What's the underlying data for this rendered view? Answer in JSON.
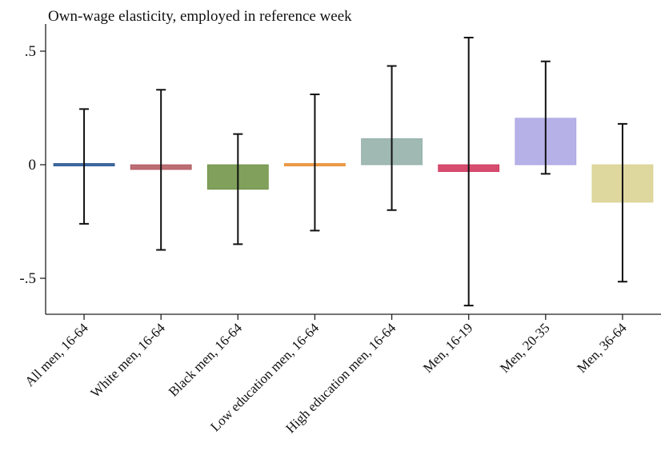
{
  "chart_data": {
    "type": "bar",
    "title": "Own-wage elasticity, employed in reference week",
    "xlabel": "",
    "ylabel": "",
    "ylim": [
      -0.66,
      0.6
    ],
    "yticks": [
      {
        "value": 0.5,
        "label": ".5"
      },
      {
        "value": 0,
        "label": "0"
      },
      {
        "value": -0.5,
        "label": "-.5"
      }
    ],
    "grid": false,
    "legend": "none",
    "categories": [
      "All men, 16-64",
      "White men, 16-64",
      "Black men, 16-64",
      "Low education men, 16-64",
      "High education men, 16-64",
      "Men, 16-19",
      "Men, 20-35",
      "Men, 36-64"
    ],
    "values": [
      -0.004,
      -0.021,
      -0.108,
      0.005,
      0.115,
      -0.03,
      0.205,
      -0.165
    ],
    "ci_low": [
      -0.26,
      -0.375,
      -0.35,
      -0.29,
      -0.2,
      -0.62,
      -0.04,
      -0.515
    ],
    "ci_high": [
      0.245,
      0.33,
      0.135,
      0.31,
      0.435,
      0.56,
      0.455,
      0.18
    ],
    "colors": [
      "#1f4e8c",
      "#b0535c",
      "#6b8f3f",
      "#e8892c",
      "#8fada5",
      "#cf2e56",
      "#a9a3e3",
      "#d8d08d"
    ]
  }
}
